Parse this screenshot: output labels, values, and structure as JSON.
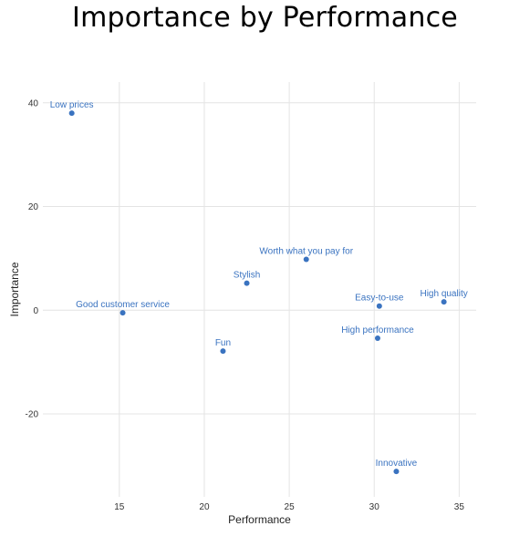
{
  "chart_data": {
    "type": "scatter",
    "title": "Importance by Performance",
    "xlabel": "Performance",
    "ylabel": "Importance",
    "xlim": [
      10.5,
      36
    ],
    "ylim": [
      -36,
      44
    ],
    "x_ticks": [
      15,
      20,
      25,
      30,
      35
    ],
    "y_ticks": [
      40,
      20,
      0,
      -20
    ],
    "grid": true,
    "point_color": "#3a73c0",
    "label_color": "#3a73c0",
    "points": [
      {
        "label": "Low prices",
        "x": 12.2,
        "y": 38
      },
      {
        "label": "Good customer service",
        "x": 15.2,
        "y": -0.5
      },
      {
        "label": "Worth what you pay for",
        "x": 26.0,
        "y": 9.8
      },
      {
        "label": "Stylish",
        "x": 22.5,
        "y": 5.2
      },
      {
        "label": "Fun",
        "x": 21.1,
        "y": -7.9
      },
      {
        "label": "Easy-to-use",
        "x": 30.3,
        "y": 0.8
      },
      {
        "label": "High quality",
        "x": 34.1,
        "y": 1.6
      },
      {
        "label": "High performance",
        "x": 30.2,
        "y": -5.4
      },
      {
        "label": "Innovative",
        "x": 31.3,
        "y": -31.1
      }
    ]
  }
}
